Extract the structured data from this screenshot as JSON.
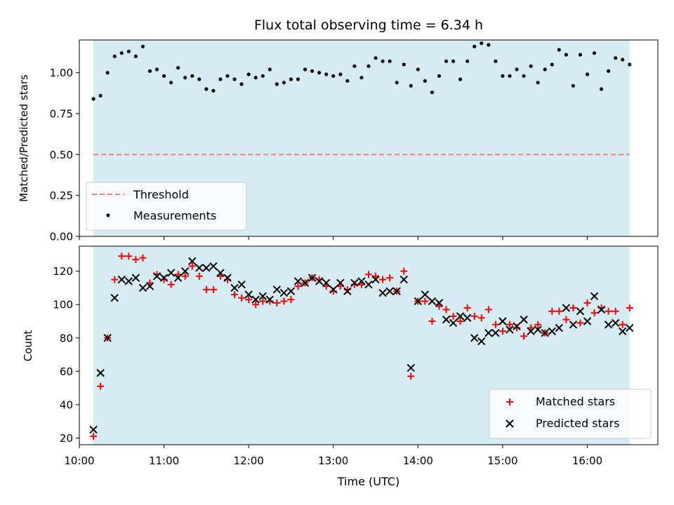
{
  "colors": {
    "band": "#add8e6",
    "threshold": "#f08080",
    "measurements": "#000000",
    "matched": "#ff0000",
    "predicted": "#000000"
  },
  "chart_data": [
    {
      "type": "scatter",
      "title": "Flux total observing time = 6.34 h",
      "xlabel": "",
      "ylabel": "Matched/Predicted stars",
      "xlim": [
        "10:00",
        "16:50"
      ],
      "ylim": [
        0,
        1.2
      ],
      "shaded_interval": [
        "10:10",
        "16:30"
      ],
      "threshold": 0.5,
      "y_ticks": [
        0.0,
        0.25,
        0.5,
        0.75,
        1.0
      ],
      "y_tick_labels": [
        "0.00",
        "0.25",
        "0.50",
        "0.75",
        "1.00"
      ],
      "legend": {
        "placement": "lower-left",
        "entries": [
          "Threshold",
          "Measurements"
        ]
      },
      "series": [
        {
          "name": "Measurements",
          "x": [
            "10:10",
            "10:15",
            "10:20",
            "10:25",
            "10:30",
            "10:35",
            "10:40",
            "10:45",
            "10:50",
            "10:55",
            "11:00",
            "11:05",
            "11:10",
            "11:15",
            "11:20",
            "11:25",
            "11:30",
            "11:35",
            "11:40",
            "11:45",
            "11:50",
            "11:55",
            "12:00",
            "12:05",
            "12:10",
            "12:15",
            "12:20",
            "12:25",
            "12:30",
            "12:35",
            "12:40",
            "12:45",
            "12:50",
            "12:55",
            "13:00",
            "13:05",
            "13:10",
            "13:15",
            "13:20",
            "13:25",
            "13:30",
            "13:35",
            "13:40",
            "13:45",
            "13:50",
            "13:55",
            "14:00",
            "14:05",
            "14:10",
            "14:15",
            "14:20",
            "14:25",
            "14:30",
            "14:35",
            "14:40",
            "14:45",
            "14:50",
            "14:55",
            "15:00",
            "15:05",
            "15:10",
            "15:15",
            "15:20",
            "15:25",
            "15:30",
            "15:35",
            "15:40",
            "15:45",
            "15:50",
            "15:55",
            "16:00",
            "16:05",
            "16:10",
            "16:15",
            "16:20",
            "16:25",
            "16:30"
          ],
          "y": [
            0.84,
            0.86,
            1.0,
            1.1,
            1.12,
            1.13,
            1.1,
            1.16,
            1.01,
            1.02,
            0.98,
            0.94,
            1.03,
            0.97,
            0.98,
            0.96,
            0.9,
            0.89,
            0.96,
            0.98,
            0.96,
            0.93,
            0.99,
            0.97,
            0.98,
            1.02,
            0.93,
            0.94,
            0.96,
            0.96,
            1.02,
            1.01,
            1.0,
            0.99,
            0.98,
            0.99,
            0.95,
            1.04,
            0.97,
            1.04,
            1.09,
            1.07,
            1.07,
            0.94,
            1.05,
            0.92,
            1.02,
            0.95,
            0.88,
            0.98,
            1.07,
            1.07,
            0.96,
            1.07,
            1.16,
            1.18,
            1.17,
            1.07,
            0.98,
            0.98,
            1.02,
            0.98,
            1.04,
            0.94,
            1.02,
            1.05,
            1.14,
            1.11,
            0.92,
            1.11,
            0.99,
            1.12,
            0.9,
            1.01,
            1.09,
            1.08,
            1.05
          ]
        }
      ]
    },
    {
      "type": "scatter",
      "title": "",
      "xlabel": "Time (UTC)",
      "ylabel": "Count",
      "xlim": [
        "10:00",
        "16:50"
      ],
      "ylim": [
        16,
        135
      ],
      "shaded_interval": [
        "10:10",
        "16:30"
      ],
      "x_ticks": [
        "10:00",
        "11:00",
        "12:00",
        "13:00",
        "14:00",
        "15:00",
        "16:00"
      ],
      "y_ticks": [
        20,
        40,
        60,
        80,
        100,
        120
      ],
      "legend": {
        "placement": "lower-right",
        "entries": [
          "Matched stars",
          "Predicted stars"
        ]
      },
      "series": [
        {
          "name": "Matched stars",
          "marker": "+",
          "x": [
            "10:10",
            "10:15",
            "10:20",
            "10:25",
            "10:30",
            "10:35",
            "10:40",
            "10:45",
            "10:50",
            "10:55",
            "11:00",
            "11:05",
            "11:10",
            "11:15",
            "11:20",
            "11:25",
            "11:30",
            "11:35",
            "11:40",
            "11:45",
            "11:50",
            "11:55",
            "12:00",
            "12:05",
            "12:10",
            "12:15",
            "12:20",
            "12:25",
            "12:30",
            "12:35",
            "12:40",
            "12:45",
            "12:50",
            "12:55",
            "13:00",
            "13:05",
            "13:10",
            "13:15",
            "13:20",
            "13:25",
            "13:30",
            "13:35",
            "13:40",
            "13:45",
            "13:50",
            "13:55",
            "14:00",
            "14:05",
            "14:10",
            "14:15",
            "14:20",
            "14:25",
            "14:30",
            "14:35",
            "14:40",
            "14:45",
            "14:50",
            "14:55",
            "15:00",
            "15:05",
            "15:10",
            "15:15",
            "15:20",
            "15:25",
            "15:30",
            "15:35",
            "15:40",
            "15:45",
            "15:50",
            "15:55",
            "16:00",
            "16:05",
            "16:10",
            "16:15",
            "16:20",
            "16:25",
            "16:30"
          ],
          "y": [
            21,
            51,
            80,
            115,
            129,
            129,
            127,
            128,
            113,
            118,
            115,
            112,
            118,
            117,
            123,
            117,
            109,
            109,
            117,
            115,
            106,
            104,
            103,
            100,
            102,
            102,
            101,
            102,
            103,
            111,
            113,
            116,
            115,
            111,
            108,
            111,
            109,
            112,
            112,
            118,
            117,
            115,
            116,
            108,
            120,
            57,
            102,
            102,
            90,
            99,
            97,
            93,
            90,
            98,
            93,
            92,
            97,
            88,
            84,
            88,
            86,
            81,
            86,
            88,
            83,
            96,
            96,
            91,
            98,
            89,
            101,
            95,
            98,
            96,
            96,
            88,
            98
          ]
        },
        {
          "name": "Predicted stars",
          "marker": "x",
          "x": [
            "10:10",
            "10:15",
            "10:20",
            "10:25",
            "10:30",
            "10:35",
            "10:40",
            "10:45",
            "10:50",
            "10:55",
            "11:00",
            "11:05",
            "11:10",
            "11:15",
            "11:20",
            "11:25",
            "11:30",
            "11:35",
            "11:40",
            "11:45",
            "11:50",
            "11:55",
            "12:00",
            "12:05",
            "12:10",
            "12:15",
            "12:20",
            "12:25",
            "12:30",
            "12:35",
            "12:40",
            "12:45",
            "12:50",
            "12:55",
            "13:00",
            "13:05",
            "13:10",
            "13:15",
            "13:20",
            "13:25",
            "13:30",
            "13:35",
            "13:40",
            "13:45",
            "13:50",
            "13:55",
            "14:00",
            "14:05",
            "14:10",
            "14:15",
            "14:20",
            "14:25",
            "14:30",
            "14:35",
            "14:40",
            "14:45",
            "14:50",
            "14:55",
            "15:00",
            "15:05",
            "15:10",
            "15:15",
            "15:20",
            "15:25",
            "15:30",
            "15:35",
            "15:40",
            "15:45",
            "15:50",
            "15:55",
            "16:00",
            "16:05",
            "16:10",
            "16:15",
            "16:20",
            "16:25",
            "16:30"
          ],
          "y": [
            25,
            59,
            80,
            104,
            115,
            114,
            116,
            110,
            111,
            117,
            116,
            119,
            116,
            120,
            126,
            122,
            122,
            123,
            119,
            116,
            110,
            112,
            106,
            103,
            105,
            103,
            109,
            107,
            108,
            114,
            113,
            116,
            114,
            113,
            109,
            113,
            108,
            113,
            114,
            112,
            115,
            107,
            108,
            108,
            115,
            62,
            102,
            106,
            102,
            101,
            91,
            89,
            93,
            92,
            80,
            78,
            83,
            83,
            90,
            85,
            87,
            91,
            84,
            85,
            83,
            84,
            86,
            98,
            88,
            96,
            90,
            105,
            97,
            88,
            89,
            84,
            86
          ]
        }
      ]
    }
  ]
}
